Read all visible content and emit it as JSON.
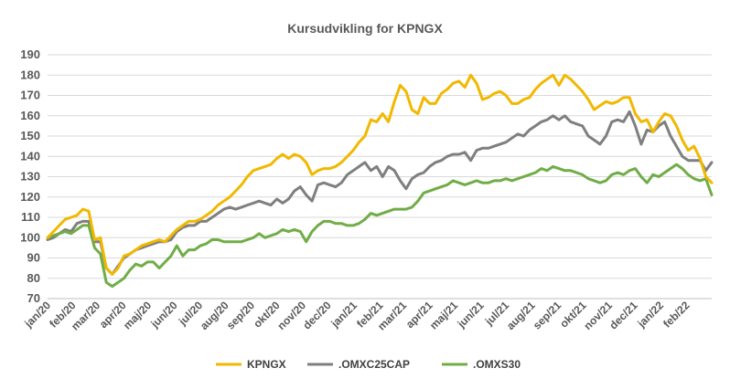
{
  "chart_data": {
    "type": "line",
    "title": "Kursudvikling for KPNGX",
    "xlabel": "",
    "ylabel": "",
    "ylim": [
      70,
      190
    ],
    "yticks": [
      70,
      80,
      90,
      100,
      110,
      120,
      130,
      140,
      150,
      160,
      170,
      180,
      190
    ],
    "grid": "horizontal",
    "legend": "bottom",
    "x": [
      "2020-01-02",
      "2020-01-09",
      "2020-01-16",
      "2020-01-23",
      "2020-01-30",
      "2020-02-06",
      "2020-02-13",
      "2020-02-20",
      "2020-02-27",
      "2020-03-05",
      "2020-03-12",
      "2020-03-19",
      "2020-03-26",
      "2020-04-02",
      "2020-04-09",
      "2020-04-16",
      "2020-04-23",
      "2020-04-30",
      "2020-05-07",
      "2020-05-14",
      "2020-05-21",
      "2020-05-28",
      "2020-06-04",
      "2020-06-11",
      "2020-06-18",
      "2020-06-25",
      "2020-07-02",
      "2020-07-09",
      "2020-07-16",
      "2020-07-23",
      "2020-07-30",
      "2020-08-06",
      "2020-08-13",
      "2020-08-20",
      "2020-08-27",
      "2020-09-03",
      "2020-09-10",
      "2020-09-17",
      "2020-09-24",
      "2020-10-01",
      "2020-10-08",
      "2020-10-15",
      "2020-10-22",
      "2020-10-29",
      "2020-11-05",
      "2020-11-12",
      "2020-11-19",
      "2020-11-26",
      "2020-12-03",
      "2020-12-10",
      "2020-12-17",
      "2020-12-24",
      "2020-12-31",
      "2021-01-07",
      "2021-01-14",
      "2021-01-21",
      "2021-01-28",
      "2021-02-04",
      "2021-02-11",
      "2021-02-18",
      "2021-02-25",
      "2021-03-04",
      "2021-03-11",
      "2021-03-18",
      "2021-03-25",
      "2021-04-01",
      "2021-04-08",
      "2021-04-15",
      "2021-04-22",
      "2021-04-29",
      "2021-05-06",
      "2021-05-13",
      "2021-05-20",
      "2021-05-27",
      "2021-06-03",
      "2021-06-10",
      "2021-06-17",
      "2021-06-24",
      "2021-07-01",
      "2021-07-08",
      "2021-07-15",
      "2021-07-22",
      "2021-07-29",
      "2021-08-05",
      "2021-08-12",
      "2021-08-19",
      "2021-08-26",
      "2021-09-02",
      "2021-09-09",
      "2021-09-16",
      "2021-09-23",
      "2021-09-30",
      "2021-10-07",
      "2021-10-14",
      "2021-10-21",
      "2021-10-28",
      "2021-11-04",
      "2021-11-11",
      "2021-11-18",
      "2021-11-25",
      "2021-12-02",
      "2021-12-09",
      "2021-12-16",
      "2021-12-23",
      "2021-12-30",
      "2022-01-06",
      "2022-01-13",
      "2022-01-20",
      "2022-01-27",
      "2022-02-03",
      "2022-02-10",
      "2022-02-17",
      "2022-02-24",
      "2022-03-03"
    ],
    "x_tick_labels": [
      "jan/20",
      "feb/20",
      "mar/20",
      "apr/20",
      "maj/20",
      "jun/20",
      "jul/20",
      "aug/20",
      "sep/20",
      "okt/20",
      "nov/20",
      "dec/20",
      "jan/21",
      "feb/21",
      "mar/21",
      "apr/21",
      "maj/21",
      "jun/21",
      "jul/21",
      "aug/21",
      "sep/21",
      "okt/21",
      "nov/21",
      "dec/21",
      "jan/22",
      "feb/22"
    ],
    "series": [
      {
        "name": "KPNGX",
        "color": "#F2B800",
        "values": [
          100,
          103,
          106,
          109,
          110,
          111,
          114,
          113,
          99,
          100,
          85,
          82,
          85,
          91,
          92,
          94,
          96,
          97,
          98,
          99,
          98,
          101,
          104,
          106,
          108,
          108,
          109,
          111,
          113,
          116,
          118,
          120,
          123,
          126,
          130,
          133,
          134,
          135,
          136,
          139,
          141,
          139,
          141,
          140,
          137,
          131,
          133,
          134,
          134,
          135,
          137,
          140,
          143,
          147,
          150,
          158,
          157,
          161,
          157,
          167,
          175,
          172,
          163,
          161,
          169,
          166,
          166,
          171,
          173,
          176,
          177,
          174,
          180,
          176,
          168,
          169,
          171,
          172,
          170,
          166,
          166,
          168,
          169,
          173,
          176,
          178,
          180,
          175,
          180,
          178,
          175,
          172,
          168,
          163,
          165,
          167,
          166,
          167,
          169,
          169,
          161,
          157,
          158,
          152,
          157,
          161,
          160,
          155,
          148,
          143,
          145,
          139,
          130,
          127
        ]
      },
      {
        "name": ".OMXC25CAP",
        "color": "#7F7F7F",
        "values": [
          99,
          100,
          102,
          104,
          103,
          107,
          108,
          108,
          98,
          98,
          85,
          82,
          86,
          90,
          92,
          94,
          95,
          96,
          97,
          98,
          98,
          99,
          103,
          105,
          106,
          106,
          108,
          108,
          110,
          112,
          114,
          115,
          114,
          115,
          116,
          117,
          118,
          117,
          116,
          119,
          117,
          119,
          123,
          125,
          121,
          118,
          126,
          127,
          126,
          125,
          127,
          131,
          133,
          135,
          137,
          133,
          135,
          130,
          135,
          133,
          128,
          124,
          129,
          131,
          132,
          135,
          137,
          138,
          140,
          141,
          141,
          142,
          138,
          143,
          144,
          144,
          145,
          146,
          147,
          149,
          151,
          150,
          153,
          155,
          157,
          158,
          160,
          158,
          160,
          157,
          156,
          155,
          150,
          148,
          146,
          150,
          157,
          158,
          157,
          162,
          155,
          146,
          153,
          152,
          155,
          157,
          150,
          145,
          140,
          138,
          138,
          138,
          133,
          137
        ]
      },
      {
        "name": ".OMXS30",
        "color": "#70AD47",
        "values": [
          100,
          101,
          102,
          103,
          102,
          104,
          106,
          106,
          95,
          92,
          78,
          76,
          78,
          80,
          84,
          87,
          86,
          88,
          88,
          85,
          88,
          91,
          96,
          91,
          94,
          94,
          96,
          97,
          99,
          99,
          98,
          98,
          98,
          98,
          99,
          100,
          102,
          100,
          101,
          102,
          104,
          103,
          104,
          103,
          98,
          103,
          106,
          108,
          108,
          107,
          107,
          106,
          106,
          107,
          109,
          112,
          111,
          112,
          113,
          114,
          114,
          114,
          115,
          118,
          122,
          123,
          124,
          125,
          126,
          128,
          127,
          126,
          127,
          128,
          127,
          127,
          128,
          128,
          129,
          128,
          129,
          130,
          131,
          132,
          134,
          133,
          135,
          134,
          133,
          133,
          132,
          131,
          129,
          128,
          127,
          128,
          131,
          132,
          131,
          133,
          134,
          130,
          127,
          131,
          130,
          132,
          134,
          136,
          134,
          131,
          129,
          128,
          129,
          121
        ]
      }
    ]
  }
}
